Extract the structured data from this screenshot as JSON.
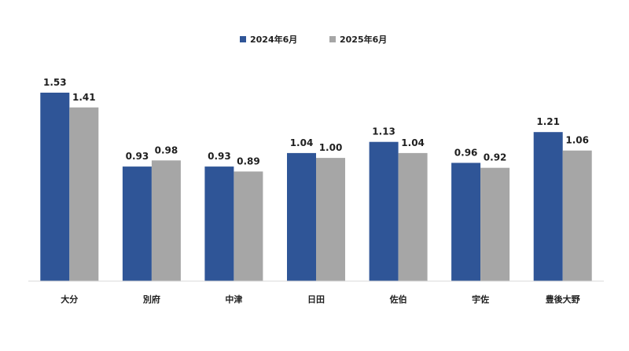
{
  "chart_data": {
    "type": "bar",
    "title": "",
    "xlabel": "",
    "ylabel": "",
    "categories": [
      "大分",
      "別府",
      "中津",
      "日田",
      "佐伯",
      "宇佐",
      "豊後大野"
    ],
    "series": [
      {
        "name": "2024年6月",
        "color": "#2f5597",
        "values": [
          1.53,
          0.93,
          0.93,
          1.04,
          1.13,
          0.96,
          1.21
        ],
        "labels": [
          "1.53",
          "0.93",
          "0.93",
          "1.04",
          "1.13",
          "0.96",
          "1.21"
        ]
      },
      {
        "name": "2025年6月",
        "color": "#a6a6a6",
        "values": [
          1.41,
          0.98,
          0.89,
          1.0,
          1.04,
          0.92,
          1.06
        ],
        "labels": [
          "1.41",
          "0.98",
          "0.89",
          "1.00",
          "1.04",
          "0.92",
          "1.06"
        ]
      }
    ],
    "ylim": [
      0,
      1.53
    ],
    "grid": false,
    "legend_position": "top-center"
  }
}
